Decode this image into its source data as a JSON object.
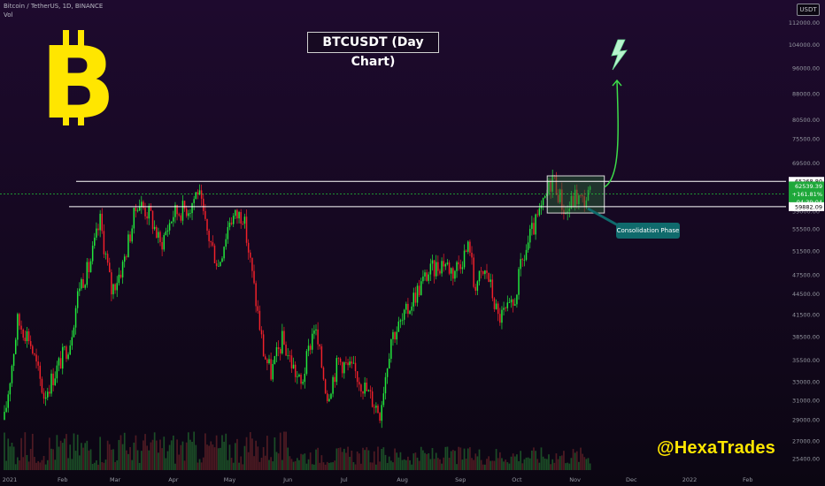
{
  "header": {
    "symbol_line": "Bitcoin / TetherUS, 1D, BINANCE",
    "vol_label": "Vol"
  },
  "title": "BTCUSDT (Day Chart)",
  "currency_tag": "USDT",
  "callout": "Consolidation Phase",
  "handle": "@HexaTrades",
  "colors": {
    "bull": "#22e83c",
    "bear": "#f0212a",
    "level_line": "#ffffff",
    "arrow": "#3ddc4a",
    "bitcoin_logo": "#ffe600",
    "consolidation_box": "#2d6b3a",
    "callout": "#0f6a6c",
    "handle": "#ffe600",
    "background": "#1e0a2e"
  },
  "icons": [
    "bitcoin-logo-icon",
    "lightning-icon",
    "up-arrow-icon"
  ],
  "chart_data": {
    "type": "candlestick",
    "title": "BTCUSDT (Day Chart)",
    "y_scale": "log",
    "y_ticks": [
      "112000.00",
      "104000.00",
      "96000.00",
      "88000.00",
      "80500.00",
      "75500.00",
      "69500.00",
      "63000.00",
      "59000.00",
      "55500.00",
      "51500.00",
      "47500.00",
      "44500.00",
      "41500.00",
      "38500.00",
      "35500.00",
      "33000.00",
      "31000.00",
      "29000.00",
      "27000.00",
      "25400.00"
    ],
    "x_ticks": [
      "2021",
      "Feb",
      "Mar",
      "Apr",
      "May",
      "Jun",
      "Jul",
      "Aug",
      "Sep",
      "Oct",
      "Nov",
      "Dec",
      "2022",
      "Feb"
    ],
    "x_range": [
      "2021-01-01",
      "2022-02-28"
    ],
    "y_range": [
      25000,
      120000
    ],
    "price_labels": [
      {
        "text": "65268.80",
        "type": "resistance"
      },
      {
        "text": "62539.39",
        "type": "last"
      },
      {
        "text": "+161.81%",
        "type": "change"
      },
      {
        "text": "04:39:04",
        "type": "countdown"
      },
      {
        "text": "59882.09",
        "type": "support"
      }
    ],
    "levels": [
      {
        "name": "resistance",
        "value": 65268.8
      },
      {
        "name": "support",
        "value": 59882.09
      }
    ],
    "consolidation_zone": {
      "start": "2021-10-20",
      "end": "2021-11-10",
      "low": 58600,
      "high": 66500
    },
    "projection": {
      "from": "2021-11-10",
      "to": "2021-11-25",
      "target": 92000
    },
    "candles_path": [
      [
        "2021-01-01",
        29000
      ],
      [
        "2021-01-08",
        40500
      ],
      [
        "2021-01-14",
        38500
      ],
      [
        "2021-01-22",
        31500
      ],
      [
        "2021-01-29",
        34500
      ],
      [
        "2021-02-05",
        38000
      ],
      [
        "2021-02-10",
        46000
      ],
      [
        "2021-02-15",
        48500
      ],
      [
        "2021-02-21",
        57000
      ],
      [
        "2021-02-27",
        45000
      ],
      [
        "2021-03-05",
        49000
      ],
      [
        "2021-03-13",
        61000
      ],
      [
        "2021-03-20",
        58000
      ],
      [
        "2021-03-25",
        52500
      ],
      [
        "2021-04-01",
        58500
      ],
      [
        "2021-04-10",
        60000
      ],
      [
        "2021-04-14",
        63500
      ],
      [
        "2021-04-18",
        56000
      ],
      [
        "2021-04-25",
        49000
      ],
      [
        "2021-05-01",
        57500
      ],
      [
        "2021-05-08",
        58500
      ],
      [
        "2021-05-12",
        49500
      ],
      [
        "2021-05-19",
        36500
      ],
      [
        "2021-05-23",
        34000
      ],
      [
        "2021-05-29",
        38000
      ],
      [
        "2021-06-08",
        32500
      ],
      [
        "2021-06-15",
        40000
      ],
      [
        "2021-06-22",
        31500
      ],
      [
        "2021-06-28",
        35500
      ],
      [
        "2021-07-07",
        34000
      ],
      [
        "2021-07-20",
        29800
      ],
      [
        "2021-07-26",
        38500
      ],
      [
        "2021-08-01",
        40500
      ],
      [
        "2021-08-07",
        44000
      ],
      [
        "2021-08-14",
        47500
      ],
      [
        "2021-08-23",
        49800
      ],
      [
        "2021-08-28",
        48000
      ],
      [
        "2021-09-06",
        52500
      ],
      [
        "2021-09-08",
        46000
      ],
      [
        "2021-09-15",
        48000
      ],
      [
        "2021-09-21",
        41000
      ],
      [
        "2021-09-29",
        42500
      ],
      [
        "2021-10-03",
        48500
      ],
      [
        "2021-10-08",
        54000
      ],
      [
        "2021-10-15",
        60000
      ],
      [
        "2021-10-20",
        66500
      ],
      [
        "2021-10-27",
        58500
      ],
      [
        "2021-11-01",
        62000
      ],
      [
        "2021-11-05",
        61000
      ],
      [
        "2021-11-10",
        63000
      ]
    ]
  }
}
